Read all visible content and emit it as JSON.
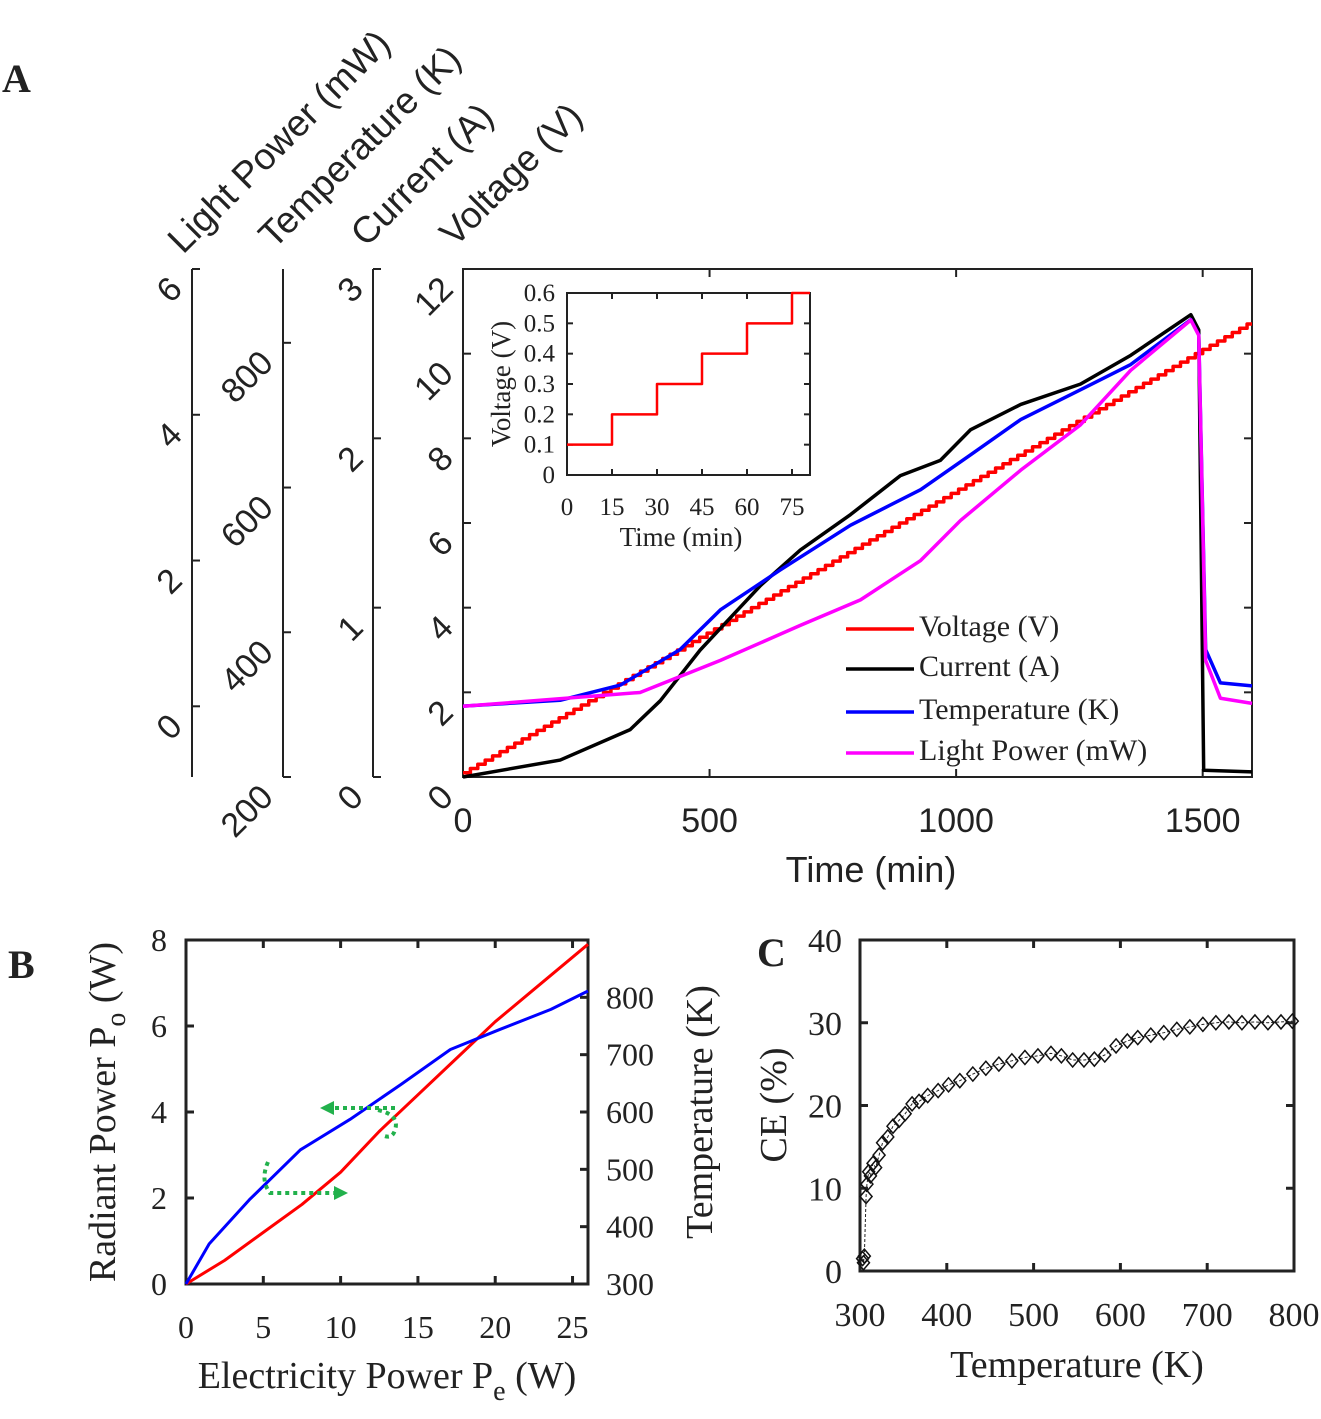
{
  "chart_data": [
    {
      "panel": "A",
      "type": "line",
      "panel_label": "A",
      "xlabel": "Time (min)",
      "xlim": [
        0,
        1600
      ],
      "xticks": [
        0,
        500,
        1000,
        1500
      ],
      "axes": [
        {
          "key": "voltage",
          "label": "Voltage (V)",
          "ylim": [
            0,
            12
          ],
          "ticks": [
            0,
            2,
            4,
            6,
            8,
            10,
            12
          ]
        },
        {
          "key": "current",
          "label": "Current (A)",
          "ylim": [
            0,
            3
          ],
          "ticks": [
            0,
            1,
            2,
            3
          ]
        },
        {
          "key": "temperature",
          "label": "Temperature (K)",
          "ylim": [
            200,
            902
          ],
          "ticks": [
            200,
            400,
            600,
            800
          ]
        },
        {
          "key": "light",
          "label": "Light Power (mW)",
          "ylim": [
            -0.97,
            6
          ],
          "ticks": [
            0,
            2,
            4,
            6
          ]
        }
      ],
      "legend_position": "bottom-right",
      "series": [
        {
          "name": "Voltage (V)",
          "axis": "voltage",
          "color": "#ff0000",
          "step": true,
          "step_interval_min": 15,
          "step_increment_V": 0.1,
          "x": [
            0,
            1600
          ],
          "y": [
            0.1,
            10.7
          ]
        },
        {
          "name": "Current (A)",
          "axis": "current",
          "color": "#000000",
          "x": [
            0,
            197,
            339,
            400,
            481,
            603,
            684,
            786,
            887,
            968,
            1029,
            1131,
            1252,
            1354,
            1476,
            1492,
            1502,
            1600
          ],
          "y": [
            0,
            0.1,
            0.28,
            0.45,
            0.75,
            1.13,
            1.34,
            1.55,
            1.78,
            1.87,
            2.05,
            2.2,
            2.32,
            2.49,
            2.73,
            2.64,
            0.04,
            0.03
          ]
        },
        {
          "name": "Temperature (K)",
          "axis": "temperature",
          "color": "#0000ff",
          "x": [
            0,
            197,
            319,
            440,
            522,
            643,
            786,
            928,
            1029,
            1131,
            1252,
            1354,
            1476,
            1492,
            1506,
            1536,
            1600
          ],
          "y": [
            298,
            306,
            327,
            376,
            431,
            486,
            548,
            597,
            645,
            694,
            735,
            770,
            832,
            811,
            376,
            330,
            326
          ]
        },
        {
          "name": "Light Power (mW)",
          "axis": "light",
          "color": "#ff00ff",
          "x": [
            0,
            359,
            522,
            684,
            806,
            928,
            1009,
            1131,
            1252,
            1354,
            1476,
            1492,
            1506,
            1536,
            1600
          ],
          "y": [
            0,
            0.19,
            0.63,
            1.11,
            1.46,
            2.0,
            2.55,
            3.24,
            3.86,
            4.61,
            5.3,
            5.09,
            0.63,
            0.11,
            0.04
          ]
        }
      ],
      "inset": {
        "type": "line",
        "xlabel": "Time (min)",
        "ylabel": "Voltage (V)",
        "xlim": [
          0,
          81
        ],
        "ylim": [
          0,
          0.6
        ],
        "xticks": [
          0,
          15,
          30,
          45,
          60,
          75
        ],
        "yticks": [
          0,
          0.1,
          0.2,
          0.3,
          0.4,
          0.5,
          0.6
        ],
        "color": "#ff0000",
        "step_x": [
          0,
          15,
          30,
          45,
          60,
          75,
          81
        ],
        "step_y": [
          0.1,
          0.2,
          0.3,
          0.4,
          0.5,
          0.6,
          0.6
        ]
      }
    },
    {
      "panel": "B",
      "type": "line",
      "panel_label": "B",
      "xlabel": "Electricity Power P",
      "xlabel_sub": "e",
      "xlabel_unit": " (W)",
      "ylabel": "Radiant Power P",
      "ylabel_sub": "o",
      "ylabel_unit": " (W)",
      "y2label": "Temperature (K)",
      "xlim": [
        0,
        26
      ],
      "ylim": [
        0,
        8
      ],
      "y2lim": [
        300,
        900
      ],
      "xticks": [
        0,
        5,
        10,
        15,
        20,
        25
      ],
      "yticks": [
        0,
        2,
        4,
        6,
        8
      ],
      "y2ticks": [
        300,
        400,
        500,
        600,
        700,
        800
      ],
      "annotation_color": "#22b14c",
      "series": [
        {
          "axis": "left",
          "color": "#ff0000",
          "x": [
            0,
            2.5,
            5,
            7.5,
            10,
            12.5,
            15,
            17.5,
            20,
            22.5,
            26
          ],
          "y": [
            0,
            0.55,
            1.2,
            1.85,
            2.6,
            3.55,
            4.4,
            5.25,
            6.1,
            6.85,
            7.9
          ]
        },
        {
          "axis": "right",
          "color": "#0000ff",
          "x": [
            0,
            1.5,
            4.1,
            7.4,
            10.6,
            13.9,
            17.1,
            20.3,
            23.6,
            26
          ],
          "y": [
            300,
            370,
            447,
            534,
            587,
            648,
            709,
            744,
            779,
            811
          ]
        }
      ]
    },
    {
      "panel": "C",
      "type": "scatter",
      "panel_label": "C",
      "xlabel": "Temperature (K)",
      "ylabel": "CE (%)",
      "xlim": [
        300,
        800
      ],
      "ylim": [
        0,
        40
      ],
      "xticks": [
        300,
        400,
        500,
        600,
        700,
        800
      ],
      "yticks": [
        0,
        10,
        20,
        30,
        40
      ],
      "marker": "diamond",
      "x": [
        303,
        304,
        305,
        307,
        308,
        310,
        312,
        315,
        318,
        322,
        326,
        332,
        338,
        345,
        352,
        360,
        368,
        378,
        390,
        402,
        415,
        430,
        445,
        460,
        475,
        490,
        505,
        520,
        532,
        545,
        558,
        570,
        582,
        595,
        608,
        620,
        635,
        650,
        665,
        680,
        695,
        710,
        725,
        740,
        755,
        770,
        785,
        798
      ],
      "y": [
        1.5,
        1.0,
        1.8,
        9.0,
        10.5,
        12,
        11.5,
        13,
        12.5,
        14,
        15.5,
        16.2,
        17.5,
        18.2,
        19,
        20.2,
        20.5,
        21.2,
        21.8,
        22.5,
        23,
        23.8,
        24.5,
        25,
        25.4,
        25.8,
        26,
        26.3,
        26.0,
        25.5,
        25.5,
        25.6,
        26.1,
        27.2,
        27.8,
        28.2,
        28.5,
        28.8,
        29.2,
        29.5,
        29.8,
        30,
        30.1,
        30,
        30.1,
        30,
        30.1,
        30.2
      ]
    }
  ]
}
